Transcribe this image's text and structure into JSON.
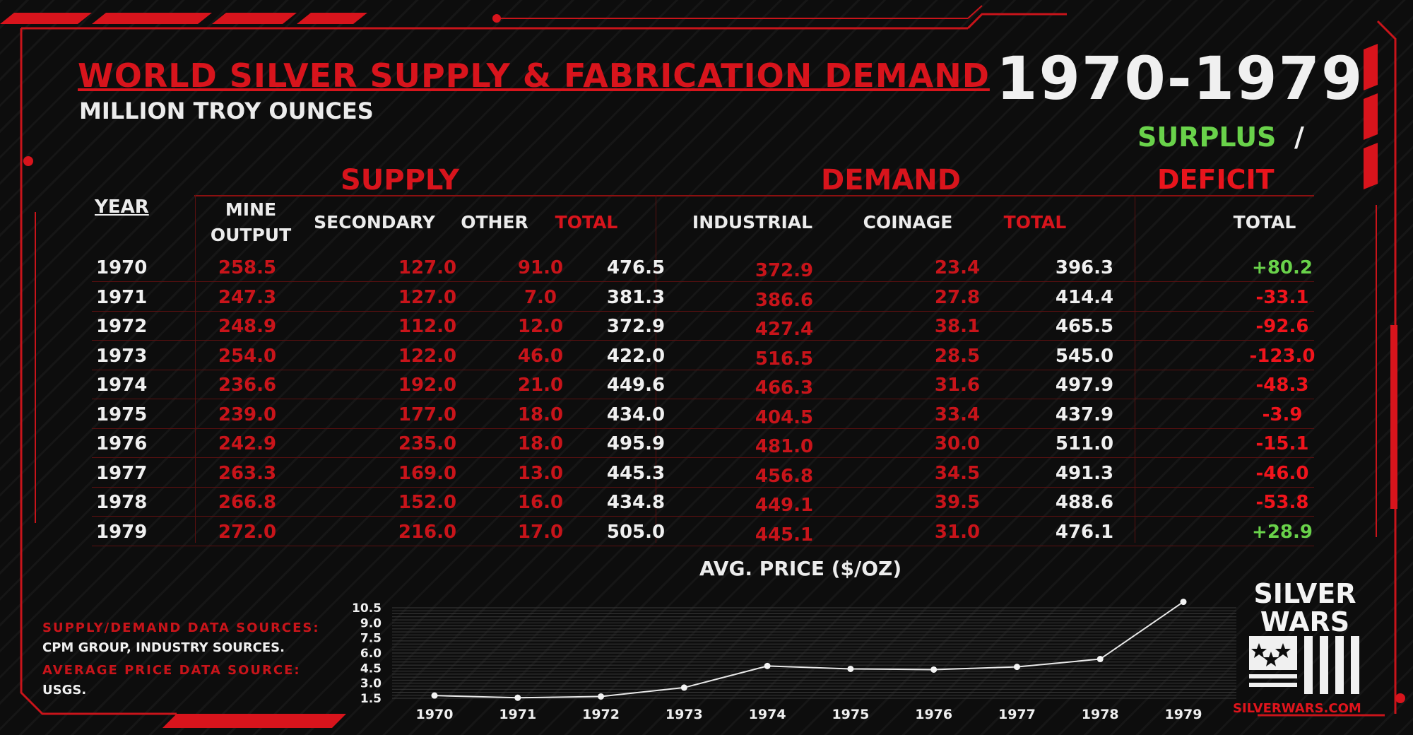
{
  "title": "WORLD SILVER SUPPLY & FABRICATION DEMAND",
  "years_range": "1970-1979",
  "subtitle": "MILLION TROY OUNCES",
  "surplus_label": "SURPLUS",
  "slash": "/",
  "deficit_label": "DEFICIT",
  "supply_header": "SUPPLY",
  "demand_header": "DEMAND",
  "columns": {
    "year": "YEAR",
    "mine_line1": "MINE",
    "mine_line2": "OUTPUT",
    "secondary": "SECONDARY",
    "other": "OTHER",
    "supply_total": "TOTAL",
    "industrial": "INDUSTRIAL",
    "coinage": "COINAGE",
    "demand_total": "TOTAL",
    "balance_total": "TOTAL"
  },
  "rows": [
    {
      "year": "1970",
      "mine": "258.5",
      "secondary": "127.0",
      "other": "91.0",
      "supply_total": "476.5",
      "industrial": "372.9",
      "coinage": "23.4",
      "demand_total": "396.3",
      "balance": "+80.2",
      "balance_sign": "pos"
    },
    {
      "year": "1971",
      "mine": "247.3",
      "secondary": "127.0",
      "other": "7.0",
      "supply_total": "381.3",
      "industrial": "386.6",
      "coinage": "27.8",
      "demand_total": "414.4",
      "balance": "-33.1",
      "balance_sign": "neg"
    },
    {
      "year": "1972",
      "mine": "248.9",
      "secondary": "112.0",
      "other": "12.0",
      "supply_total": "372.9",
      "industrial": "427.4",
      "coinage": "38.1",
      "demand_total": "465.5",
      "balance": "-92.6",
      "balance_sign": "neg"
    },
    {
      "year": "1973",
      "mine": "254.0",
      "secondary": "122.0",
      "other": "46.0",
      "supply_total": "422.0",
      "industrial": "516.5",
      "coinage": "28.5",
      "demand_total": "545.0",
      "balance": "-123.0",
      "balance_sign": "neg"
    },
    {
      "year": "1974",
      "mine": "236.6",
      "secondary": "192.0",
      "other": "21.0",
      "supply_total": "449.6",
      "industrial": "466.3",
      "coinage": "31.6",
      "demand_total": "497.9",
      "balance": "-48.3",
      "balance_sign": "neg"
    },
    {
      "year": "1975",
      "mine": "239.0",
      "secondary": "177.0",
      "other": "18.0",
      "supply_total": "434.0",
      "industrial": "404.5",
      "coinage": "33.4",
      "demand_total": "437.9",
      "balance": "-3.9",
      "balance_sign": "neg"
    },
    {
      "year": "1976",
      "mine": "242.9",
      "secondary": "235.0",
      "other": "18.0",
      "supply_total": "495.9",
      "industrial": "481.0",
      "coinage": "30.0",
      "demand_total": "511.0",
      "balance": "-15.1",
      "balance_sign": "neg"
    },
    {
      "year": "1977",
      "mine": "263.3",
      "secondary": "169.0",
      "other": "13.0",
      "supply_total": "445.3",
      "industrial": "456.8",
      "coinage": "34.5",
      "demand_total": "491.3",
      "balance": "-46.0",
      "balance_sign": "neg"
    },
    {
      "year": "1978",
      "mine": "266.8",
      "secondary": "152.0",
      "other": "16.0",
      "supply_total": "434.8",
      "industrial": "449.1",
      "coinage": "39.5",
      "demand_total": "488.6",
      "balance": "-53.8",
      "balance_sign": "neg"
    },
    {
      "year": "1979",
      "mine": "272.0",
      "secondary": "216.0",
      "other": "17.0",
      "supply_total": "505.0",
      "industrial": "445.1",
      "coinage": "31.0",
      "demand_total": "476.1",
      "balance": "+28.9",
      "balance_sign": "pos"
    }
  ],
  "sources": {
    "supply_label": "SUPPLY/DEMAND DATA SOURCES:",
    "supply_value": "CPM GROUP, INDUSTRY SOURCES.",
    "price_label": "AVERAGE PRICE DATA SOURCE:",
    "price_value": "USGS."
  },
  "logo": {
    "line1": "SILVER",
    "line2": "WARS",
    "url": "SILVERWARS.COM"
  },
  "colors": {
    "accent_red": "#d8141c",
    "surplus_green": "#69d24a",
    "background": "#0d0d0d"
  },
  "chart_data": {
    "type": "line",
    "title": "AVG. PRICE ($/OZ)",
    "x": [
      "1970",
      "1971",
      "1972",
      "1973",
      "1974",
      "1975",
      "1976",
      "1977",
      "1978",
      "1979"
    ],
    "series": [
      {
        "values": [
          1.77,
          1.55,
          1.68,
          2.56,
          4.71,
          4.42,
          4.35,
          4.62,
          5.4,
          11.09
        ]
      }
    ],
    "yticks": [
      "10.5",
      "9.0",
      "7.5",
      "6.0",
      "4.5",
      "3.0",
      "1.5"
    ],
    "ylim": [
      1.5,
      10.5
    ],
    "grid": true
  }
}
